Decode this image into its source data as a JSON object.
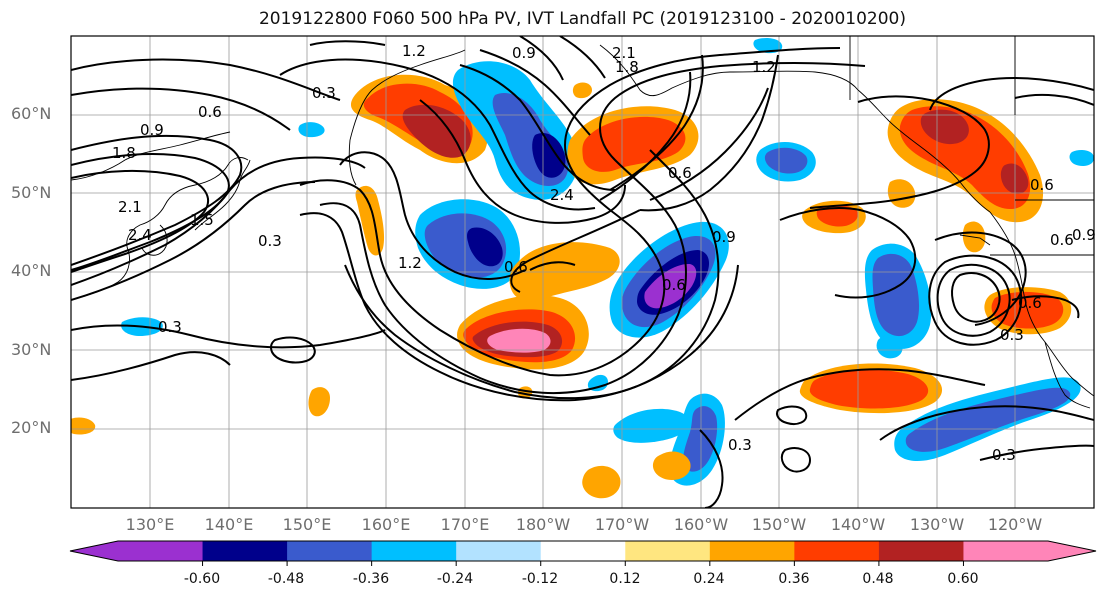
{
  "title": "2019122800 F060 500 hPa PV, IVT Landfall PC (2019123100 - 2020010200)",
  "lat_labels": [
    "60°N",
    "50°N",
    "40°N",
    "30°N",
    "20°N"
  ],
  "lon_labels": [
    "130°E",
    "140°E",
    "150°E",
    "160°E",
    "170°E",
    "180°W",
    "170°W",
    "160°W",
    "150°W",
    "140°W",
    "130°W",
    "120°W"
  ],
  "colorbar": {
    "colors": [
      "#9b30d0",
      "#00008b",
      "#3a5bcd",
      "#00bfff",
      "#b2e2ff",
      "#ffffff",
      "#ffe680",
      "#ffa500",
      "#ff3d00",
      "#b22222",
      "#ff85b8"
    ],
    "tick_labels": [
      "-0.60",
      "-0.48",
      "-0.36",
      "-0.24",
      "-0.12",
      "0.12",
      "0.24",
      "0.36",
      "0.48",
      "0.60"
    ]
  },
  "contour_labels": [
    "1.2",
    "0.9",
    "2.1",
    "1.8",
    "1.2",
    "0.3",
    "0.6",
    "0.9",
    "1.8",
    "2.1",
    "2.4",
    "1.5",
    "0.3",
    "0.3",
    "2.4",
    "0.6",
    "1.2",
    "0.6",
    "0.6",
    "0.9",
    "0.6",
    "0.3",
    "0.3",
    "0.6",
    "0.9",
    "0.6",
    "0.3"
  ],
  "map_layers": {
    "land_outline_color": "#000000",
    "pv_contour_color": "#000000",
    "gridlines": true,
    "grid_color": "#9a9a9a"
  }
}
